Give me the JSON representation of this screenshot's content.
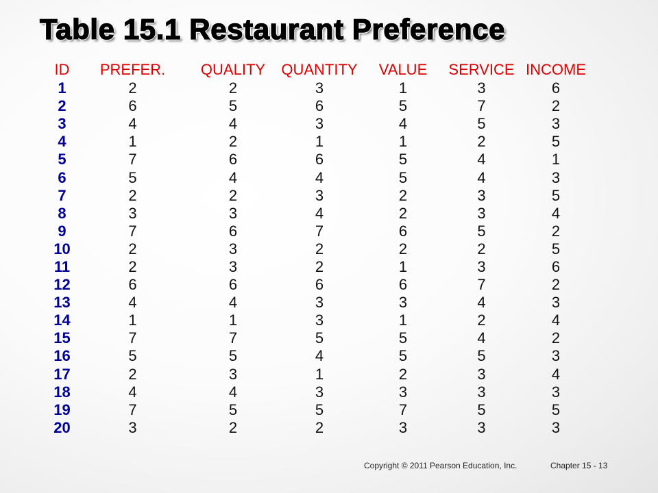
{
  "slide": {
    "title": "Table 15.1 Restaurant Preference"
  },
  "table": {
    "headers": [
      "ID",
      "PREFER.",
      "QUALITY",
      "QUANTITY",
      "VALUE",
      "SERVICE",
      "INCOME"
    ],
    "rows": [
      [
        "1",
        "2",
        "2",
        "3",
        "1",
        "3",
        "6"
      ],
      [
        "2",
        "6",
        "5",
        "6",
        "5",
        "7",
        "2"
      ],
      [
        "3",
        "4",
        "4",
        "3",
        "4",
        "5",
        "3"
      ],
      [
        "4",
        "1",
        "2",
        "1",
        "1",
        "2",
        "5"
      ],
      [
        "5",
        "7",
        "6",
        "6",
        "5",
        "4",
        "1"
      ],
      [
        "6",
        "5",
        "4",
        "4",
        "5",
        "4",
        "3"
      ],
      [
        "7",
        "2",
        "2",
        "3",
        "2",
        "3",
        "5"
      ],
      [
        "8",
        "3",
        "3",
        "4",
        "2",
        "3",
        "4"
      ],
      [
        "9",
        "7",
        "6",
        "7",
        "6",
        "5",
        "2"
      ],
      [
        "10",
        "2",
        "3",
        "2",
        "2",
        "2",
        "5"
      ],
      [
        "11",
        "2",
        "3",
        "2",
        "1",
        "3",
        "6"
      ],
      [
        "12",
        "6",
        "6",
        "6",
        "6",
        "7",
        "2"
      ],
      [
        "13",
        "4",
        "4",
        "3",
        "3",
        "4",
        "3"
      ],
      [
        "14",
        "1",
        "1",
        "3",
        "1",
        "2",
        "4"
      ],
      [
        "15",
        "7",
        "7",
        "5",
        "5",
        "4",
        "2"
      ],
      [
        "16",
        "5",
        "5",
        "4",
        "5",
        "5",
        "3"
      ],
      [
        "17",
        "2",
        "3",
        "1",
        "2",
        "3",
        "4"
      ],
      [
        "18",
        "4",
        "4",
        "3",
        "3",
        "3",
        "3"
      ],
      [
        "19",
        "7",
        "5",
        "5",
        "7",
        "5",
        "5"
      ],
      [
        "20",
        "3",
        "2",
        "2",
        "3",
        "3",
        "3"
      ]
    ]
  },
  "footer": {
    "copyright": "Copyright © 2011 Pearson Education, Inc.",
    "chapter": "Chapter 15 - 13"
  },
  "colors": {
    "header_text": "#dd0000",
    "id_text": "#000099",
    "body_text": "#111111"
  }
}
